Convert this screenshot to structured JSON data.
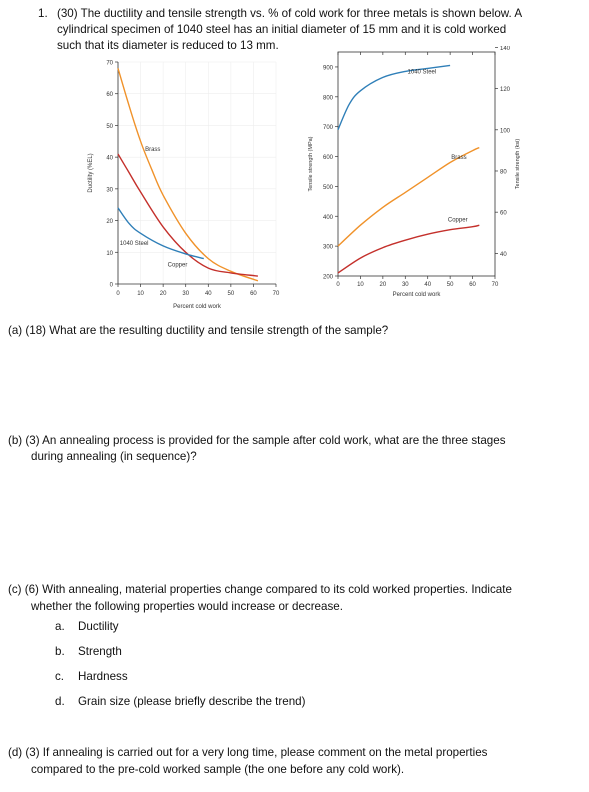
{
  "question": {
    "number": "1.",
    "lines": [
      "(30) The ductility and tensile strength vs. % of cold work for three metals is shown below. A",
      "cylindrical specimen of 1040 steel has an initial diameter of 15 mm and it is cold worked",
      "such that its diameter is reduced to 13 mm."
    ]
  },
  "figure": {
    "ductility_chart": {
      "type": "line",
      "ylabel": "Ductility (%EL)",
      "xlabel": "Percent cold work",
      "xticks": [
        "0",
        "10",
        "20",
        "30",
        "40",
        "50",
        "60",
        "70"
      ],
      "yticks": [
        "0",
        "10",
        "20",
        "30",
        "40",
        "50",
        "60",
        "70"
      ],
      "xlim": [
        0,
        70
      ],
      "ylim": [
        0,
        70
      ],
      "labels": {
        "brass": "Brass",
        "steel": "1040 Steel",
        "copper": "Copper"
      },
      "colors": {
        "brass": "#f0922a",
        "steel": "#2f7fb8",
        "copper": "#c4302b"
      },
      "series": [
        {
          "name": "Brass",
          "x": [
            0,
            5,
            10,
            15,
            20,
            30,
            40,
            50,
            62
          ],
          "y": [
            68,
            56,
            45,
            36,
            28,
            16,
            8,
            4,
            1
          ]
        },
        {
          "name": "Copper",
          "x": [
            0,
            5,
            10,
            20,
            30,
            40,
            50,
            62
          ],
          "y": [
            41,
            35,
            29,
            18,
            10,
            5,
            3.5,
            2.5
          ]
        },
        {
          "name": "1040 Steel",
          "x": [
            0,
            5,
            10,
            20,
            30,
            38
          ],
          "y": [
            24,
            19,
            16,
            12,
            9.5,
            8
          ]
        }
      ]
    },
    "strength_chart": {
      "type": "line",
      "ylabel_left": "Tensile strength (MPa)",
      "ylabel_right": "Tensile strength (ksi)",
      "xlabel": "Percent cold work",
      "xticks": [
        "0",
        "10",
        "20",
        "30",
        "40",
        "50",
        "60",
        "70"
      ],
      "yticks_left": [
        "200",
        "300",
        "400",
        "500",
        "600",
        "700",
        "800",
        "900"
      ],
      "yticks_right": [
        "40",
        "60",
        "80",
        "100",
        "120",
        "140"
      ],
      "xlim": [
        0,
        70
      ],
      "ylim": [
        200,
        950
      ],
      "labels": {
        "steel": "1040 Steel",
        "brass": "Brass",
        "copper": "Copper"
      },
      "colors": {
        "steel": "#2f7fb8",
        "brass": "#f0922a",
        "copper": "#c4302b"
      },
      "series": [
        {
          "name": "1040 Steel",
          "x": [
            0,
            5,
            10,
            20,
            30,
            40,
            50
          ],
          "y": [
            690,
            775,
            820,
            865,
            885,
            895,
            905
          ]
        },
        {
          "name": "Brass",
          "x": [
            0,
            10,
            20,
            30,
            40,
            50,
            60,
            63
          ],
          "y": [
            300,
            370,
            430,
            480,
            530,
            580,
            620,
            630
          ]
        },
        {
          "name": "Copper",
          "x": [
            0,
            10,
            20,
            30,
            40,
            50,
            60,
            63
          ],
          "y": [
            210,
            260,
            295,
            320,
            340,
            355,
            365,
            370
          ]
        }
      ]
    }
  },
  "parts": {
    "a": "(a)  (18) What are the resulting ductility and tensile strength of the sample?",
    "b": [
      "(b)  (3) An annealing process is provided for the sample after cold work, what are the three stages",
      "during annealing (in sequence)?"
    ],
    "c": [
      "(c)  (6) With annealing, material properties change compared to its cold worked properties. Indicate",
      "whether the following properties would increase or decrease."
    ],
    "c_items": [
      {
        "marker": "a.",
        "text": "Ductility"
      },
      {
        "marker": "b.",
        "text": "Strength"
      },
      {
        "marker": "c.",
        "text": "Hardness"
      },
      {
        "marker": "d.",
        "text": "Grain size (please briefly describe the trend)"
      }
    ],
    "d": [
      "(d)  (3) If annealing is carried out for a very long time, please comment on the metal properties",
      "compared to the pre-cold worked sample (the one before any cold work)."
    ]
  }
}
